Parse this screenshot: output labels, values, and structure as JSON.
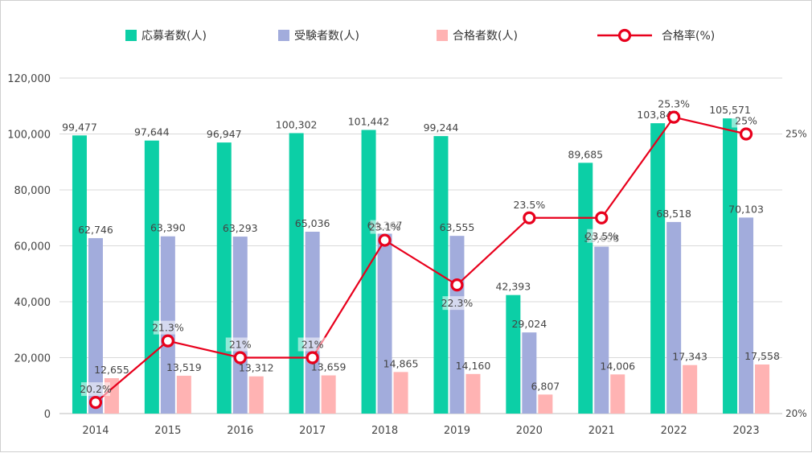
{
  "chart_data": {
    "type": "bar",
    "categories": [
      "2014",
      "2015",
      "2016",
      "2017",
      "2018",
      "2019",
      "2020",
      "2021",
      "2022",
      "2023"
    ],
    "series": [
      {
        "name": "応募者数(人)",
        "type": "bar",
        "color": "#0ccfa6",
        "values": [
          99477,
          97644,
          96947,
          100302,
          101442,
          99244,
          42393,
          89685,
          103844,
          105571
        ],
        "labels": [
          "99,477",
          "97,644",
          "96,947",
          "100,302",
          "101,442",
          "99,244",
          "42,393",
          "89,685",
          "103,844",
          "105,571"
        ]
      },
      {
        "name": "受験者数(人)",
        "type": "bar",
        "color": "#a2acdc",
        "values": [
          62746,
          63390,
          63293,
          65036,
          64367,
          63555,
          29024,
          59698,
          68518,
          70103
        ],
        "labels": [
          "62,746",
          "63,390",
          "63,293",
          "65,036",
          "64,367",
          "63,555",
          "29,024",
          "59,698",
          "68,518",
          "70,103"
        ]
      },
      {
        "name": "合格者数(人)",
        "type": "bar",
        "color": "#ffb3b3",
        "values": [
          12655,
          13519,
          13312,
          13659,
          14865,
          14160,
          6807,
          14006,
          17343,
          17558
        ],
        "labels": [
          "12,655",
          "13,519",
          "13,312",
          "13,659",
          "14,865",
          "14,160",
          "6,807",
          "14,006",
          "17,343",
          "17,558"
        ]
      },
      {
        "name": "合格率(%)",
        "type": "line",
        "axis": "right",
        "color": "#e8001c",
        "values": [
          20.2,
          21.3,
          21,
          21,
          23.1,
          22.3,
          23.5,
          23.5,
          25.3,
          25
        ],
        "labels": [
          "20.2%",
          "21.3%",
          "21%",
          "21%",
          "23.1%",
          "22.3%",
          "23.5%",
          "23.5%",
          "25.3%",
          "25%"
        ]
      }
    ],
    "y_axis": {
      "range": [
        0,
        120000
      ],
      "ticks": [
        "0",
        "20,000",
        "40,000",
        "60,000",
        "80,000",
        "100,000",
        "120,000"
      ]
    },
    "y2_axis": {
      "range": [
        20,
        26
      ],
      "ticks": [
        {
          "value": 20,
          "label": "20%"
        },
        {
          "value": 25,
          "label": "25%"
        }
      ]
    },
    "grid": true,
    "legend": "top"
  }
}
